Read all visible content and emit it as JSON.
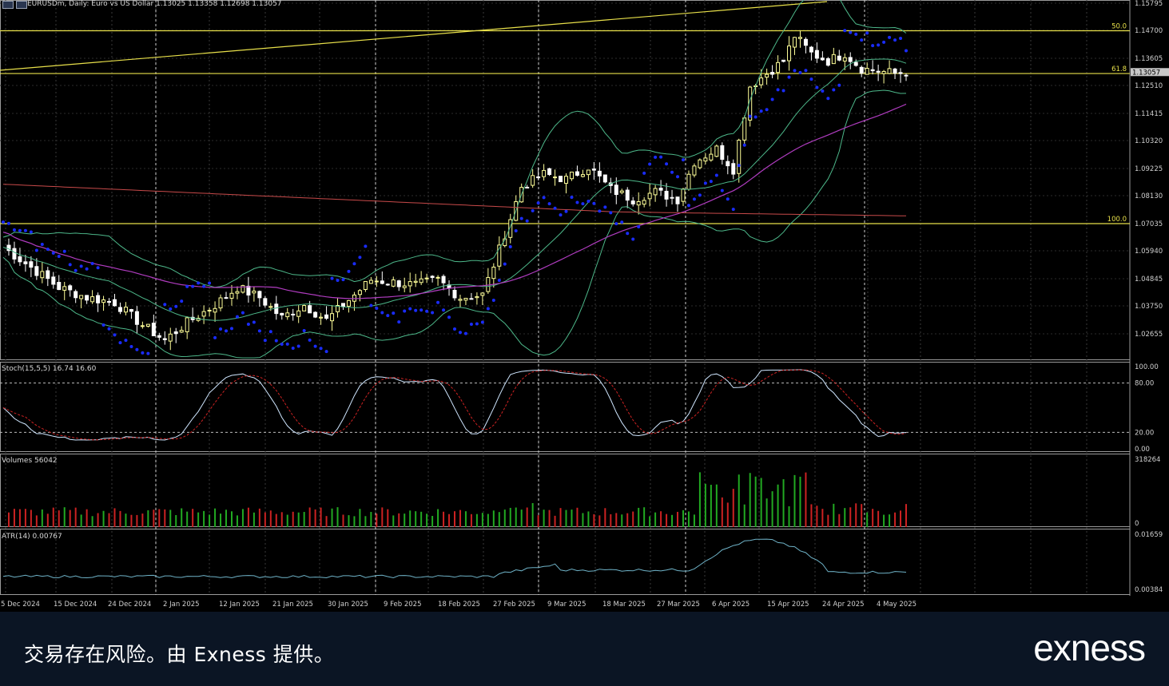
{
  "chart_header": {
    "symbol": "EURUSDm, Daily: Euro vs US Dollar 1.13025 1.13358 1.12698 1.13057"
  },
  "price_axis": {
    "ticks": [
      "1.15795",
      "1.14700",
      "1.13605",
      "1.12510",
      "1.11415",
      "1.10320",
      "1.09225",
      "1.08130",
      "1.07035",
      "1.05940",
      "1.04845",
      "1.03750",
      "1.02655"
    ],
    "current_price": "1.13057"
  },
  "fibo_levels": {
    "level_50": "50.0",
    "level_618": "61.8",
    "level_100": "100.0"
  },
  "stoch_panel": {
    "title": "Stoch(15,5,5) 16.74 16.60",
    "ticks": [
      "100.00",
      "80.00",
      "20.00",
      "0.00"
    ]
  },
  "volume_panel": {
    "title": "Volumes 56042",
    "ticks": [
      "318264",
      "0"
    ]
  },
  "atr_panel": {
    "title": "ATR(14) 0.00767",
    "ticks": [
      "0.01659",
      "0.00384"
    ]
  },
  "time_axis": {
    "labels": [
      "5 Dec 2024",
      "15 Dec 2024",
      "24 Dec 2024",
      "2 Jan 2025",
      "12 Jan 2025",
      "21 Jan 2025",
      "30 Jan 2025",
      "9 Feb 2025",
      "18 Feb 2025",
      "27 Feb 2025",
      "9 Mar 2025",
      "18 Mar 2025",
      "27 Mar 2025",
      "6 Apr 2025",
      "15 Apr 2025",
      "24 Apr 2025",
      "4 May 2025"
    ]
  },
  "footer": {
    "disclaimer": "交易存在风险。由 Exness 提供。",
    "brand": "exness"
  },
  "colors": {
    "background": "#000000",
    "grid": "#3a3a3a",
    "bull_candle": "#ffff99",
    "bear_candle": "#ffffff",
    "fibo_line": "#e8e04a",
    "parabolic_sar": "#1a2cff",
    "bollinger": "#4db88a",
    "ma_slow": "#b03cc0",
    "ma_long": "#c84a4a",
    "stoch_main": "#cfe6ff",
    "stoch_signal": "#cc2222",
    "volume_up": "#22aa22",
    "volume_down": "#cc2222",
    "atr_line": "#6fb3c8",
    "footer_bg": "#0b1524"
  }
}
